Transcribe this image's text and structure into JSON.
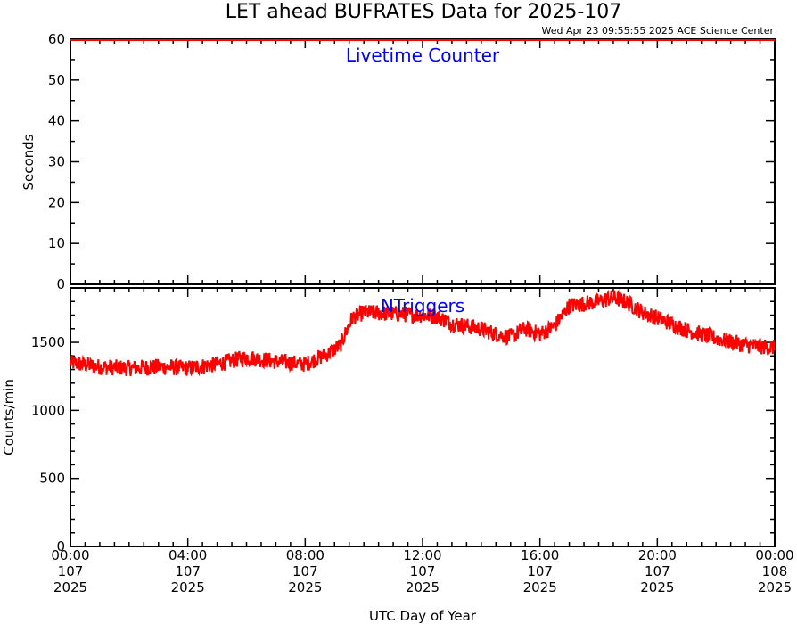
{
  "header": {
    "title": "LET ahead BUFRATES Data for 2025-107",
    "timestamp": "Wed Apr 23 09:55:55 2025 ACE Science Center"
  },
  "colors": {
    "series": "#ff0000",
    "panel_label": "#0000ff",
    "axes": "#000000"
  },
  "chart_data": [
    {
      "type": "line",
      "label": "Livetime Counter",
      "ylabel": "Seconds",
      "ylim": [
        0,
        60
      ],
      "yticks": [
        0,
        10,
        20,
        30,
        40,
        50,
        60
      ],
      "xlim": [
        0,
        24
      ],
      "grid": false,
      "series": [
        {
          "color": "#ff0000",
          "x": [
            0,
            24
          ],
          "y": [
            60,
            60
          ]
        }
      ]
    },
    {
      "type": "line",
      "label": "NTriggers",
      "ylabel": "Counts/min",
      "ylim": [
        0,
        1900
      ],
      "yticks": [
        0,
        500,
        1000,
        1500
      ],
      "xlim": [
        0,
        24
      ],
      "grid": false,
      "series": [
        {
          "color": "#ff0000",
          "noise": 60,
          "x": [
            0,
            1,
            2,
            3,
            4,
            5,
            6,
            7,
            8,
            8.8,
            9.2,
            9.6,
            10,
            11,
            12,
            12.5,
            13,
            14,
            14.5,
            15,
            15.5,
            16,
            16.5,
            17,
            18,
            18.5,
            19,
            19.5,
            20,
            21,
            22,
            23,
            24
          ],
          "y": [
            1350,
            1320,
            1310,
            1320,
            1310,
            1340,
            1390,
            1360,
            1340,
            1420,
            1480,
            1680,
            1720,
            1710,
            1700,
            1690,
            1640,
            1600,
            1560,
            1540,
            1600,
            1560,
            1620,
            1770,
            1800,
            1830,
            1790,
            1720,
            1680,
            1590,
            1530,
            1480,
            1460
          ]
        }
      ]
    }
  ],
  "x_axis": {
    "label": "UTC Day of Year",
    "ticks": [
      {
        "x": 0,
        "time": "00:00",
        "day": "107",
        "year": "2025"
      },
      {
        "x": 4,
        "time": "04:00",
        "day": "107",
        "year": "2025"
      },
      {
        "x": 8,
        "time": "08:00",
        "day": "107",
        "year": "2025"
      },
      {
        "x": 12,
        "time": "12:00",
        "day": "107",
        "year": "2025"
      },
      {
        "x": 16,
        "time": "16:00",
        "day": "107",
        "year": "2025"
      },
      {
        "x": 20,
        "time": "20:00",
        "day": "107",
        "year": "2025"
      },
      {
        "x": 24,
        "time": "00:00",
        "day": "108",
        "year": "2025"
      }
    ]
  }
}
